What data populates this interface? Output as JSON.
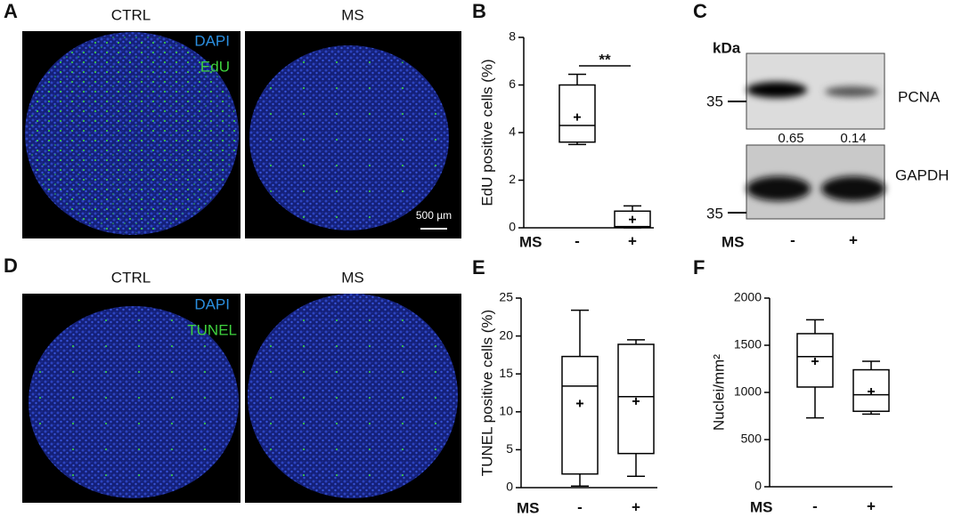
{
  "panels": [
    "A",
    "B",
    "C",
    "D",
    "E",
    "F"
  ],
  "images": [
    {
      "groups": [
        "CTRL",
        "MS"
      ],
      "stains": [
        "DAPI",
        "EdU"
      ],
      "scale_bar": "500 µm"
    },
    {
      "groups": [
        "CTRL",
        "MS"
      ],
      "stains": [
        "DAPI",
        "TUNEL"
      ]
    }
  ],
  "blot": {
    "unit": "kDa",
    "markers": [
      35,
      35
    ],
    "bands": [
      "PCNA",
      "GAPDH"
    ],
    "quantification": [
      0.65,
      0.14
    ],
    "xlabel": "MS",
    "lanes": [
      "-",
      "+"
    ]
  },
  "chart_data": [
    {
      "type": "box",
      "ylabel": "EdU positive cells (%)",
      "xlabel": "MS",
      "categories": [
        "-",
        "+"
      ],
      "ylim": [
        0,
        8
      ],
      "yticks": [
        0,
        2,
        4,
        6,
        8
      ],
      "annotation": "**",
      "boxes": [
        {
          "min": 3.5,
          "q1": 3.6,
          "median": 4.3,
          "q3": 6.0,
          "max": 6.45,
          "mean": 4.65
        },
        {
          "min": 0.0,
          "q1": 0.04,
          "median": 0.05,
          "q3": 0.7,
          "max": 0.92,
          "mean": 0.35
        }
      ],
      "color": "#000000"
    },
    {
      "type": "box",
      "ylabel": "TUNEL positive cells (%)",
      "xlabel": "MS",
      "categories": [
        "-",
        "+"
      ],
      "ylim": [
        0,
        25
      ],
      "yticks": [
        0,
        5,
        10,
        15,
        20,
        25
      ],
      "boxes": [
        {
          "min": 0.2,
          "q1": 1.8,
          "median": 13.4,
          "q3": 17.3,
          "max": 23.4,
          "mean": 11.1
        },
        {
          "min": 1.5,
          "q1": 4.5,
          "median": 12.0,
          "q3": 18.9,
          "max": 19.5,
          "mean": 11.4
        }
      ],
      "color": "#000000"
    },
    {
      "type": "box",
      "ylabel": "Nuclei/mm²",
      "xlabel": "MS",
      "categories": [
        "-",
        "+"
      ],
      "ylim": [
        0,
        2000
      ],
      "yticks": [
        0,
        500,
        1000,
        1500,
        2000
      ],
      "boxes": [
        {
          "min": 730,
          "q1": 1057,
          "median": 1380,
          "q3": 1623,
          "max": 1770,
          "mean": 1330
        },
        {
          "min": 770,
          "q1": 800,
          "median": 975,
          "q3": 1240,
          "max": 1330,
          "mean": 1010
        }
      ],
      "color": "#000000"
    }
  ]
}
